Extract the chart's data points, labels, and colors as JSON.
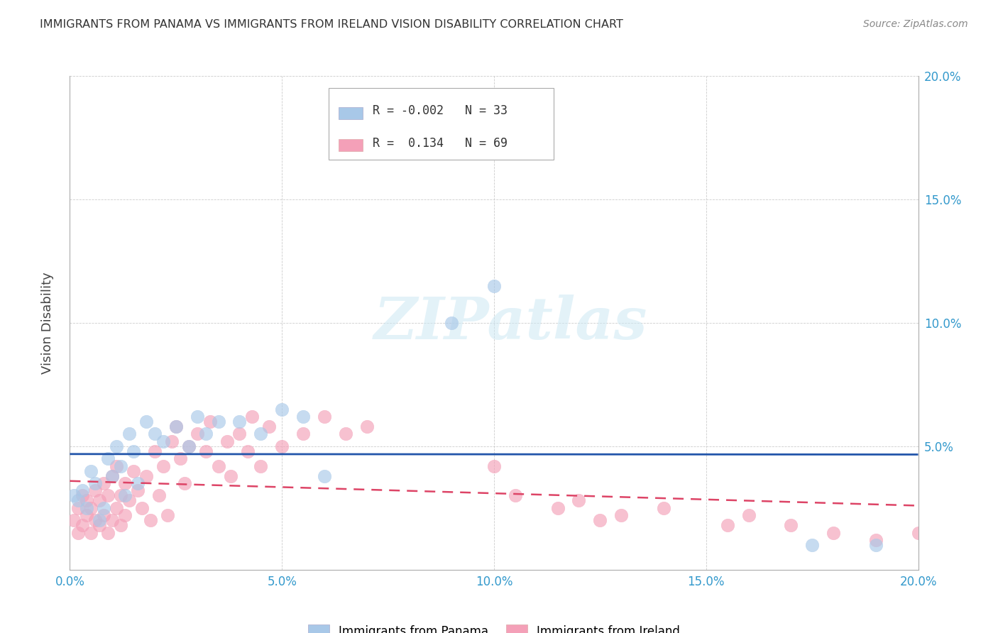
{
  "title": "IMMIGRANTS FROM PANAMA VS IMMIGRANTS FROM IRELAND VISION DISABILITY CORRELATION CHART",
  "source": "Source: ZipAtlas.com",
  "ylabel": "Vision Disability",
  "xlim": [
    0.0,
    0.2
  ],
  "ylim": [
    0.0,
    0.2
  ],
  "xticks": [
    0.0,
    0.05,
    0.1,
    0.15,
    0.2
  ],
  "yticks": [
    0.05,
    0.1,
    0.15,
    0.2
  ],
  "xtick_labels": [
    "0.0%",
    "5.0%",
    "10.0%",
    "15.0%",
    "20.0%"
  ],
  "ytick_labels_right": [
    "5.0%",
    "10.0%",
    "15.0%",
    "20.0%"
  ],
  "color_panama": "#a8c8e8",
  "color_ireland": "#f4a0b8",
  "trendline_panama_color": "#2255aa",
  "trendline_ireland_color": "#dd4466",
  "legend_r_panama": "-0.002",
  "legend_n_panama": "33",
  "legend_r_ireland": "0.134",
  "legend_n_ireland": "69",
  "panama_x": [
    0.001,
    0.002,
    0.003,
    0.004,
    0.005,
    0.006,
    0.007,
    0.008,
    0.009,
    0.01,
    0.011,
    0.012,
    0.013,
    0.014,
    0.015,
    0.016,
    0.018,
    0.02,
    0.022,
    0.025,
    0.028,
    0.03,
    0.032,
    0.035,
    0.04,
    0.045,
    0.05,
    0.055,
    0.06,
    0.09,
    0.1,
    0.175,
    0.19
  ],
  "panama_y": [
    0.03,
    0.028,
    0.032,
    0.025,
    0.04,
    0.035,
    0.02,
    0.025,
    0.045,
    0.038,
    0.05,
    0.042,
    0.03,
    0.055,
    0.048,
    0.035,
    0.06,
    0.055,
    0.052,
    0.058,
    0.05,
    0.062,
    0.055,
    0.06,
    0.06,
    0.055,
    0.065,
    0.062,
    0.038,
    0.1,
    0.115,
    0.01,
    0.01
  ],
  "ireland_x": [
    0.001,
    0.002,
    0.002,
    0.003,
    0.003,
    0.004,
    0.004,
    0.005,
    0.005,
    0.006,
    0.006,
    0.007,
    0.007,
    0.008,
    0.008,
    0.009,
    0.009,
    0.01,
    0.01,
    0.011,
    0.011,
    0.012,
    0.012,
    0.013,
    0.013,
    0.014,
    0.015,
    0.016,
    0.017,
    0.018,
    0.019,
    0.02,
    0.021,
    0.022,
    0.023,
    0.024,
    0.025,
    0.026,
    0.027,
    0.028,
    0.03,
    0.032,
    0.033,
    0.035,
    0.037,
    0.038,
    0.04,
    0.042,
    0.043,
    0.045,
    0.047,
    0.05,
    0.055,
    0.06,
    0.065,
    0.07,
    0.1,
    0.105,
    0.115,
    0.12,
    0.125,
    0.13,
    0.14,
    0.155,
    0.16,
    0.17,
    0.18,
    0.19,
    0.2
  ],
  "ireland_y": [
    0.02,
    0.015,
    0.025,
    0.018,
    0.03,
    0.022,
    0.028,
    0.015,
    0.025,
    0.02,
    0.032,
    0.018,
    0.028,
    0.022,
    0.035,
    0.015,
    0.03,
    0.02,
    0.038,
    0.025,
    0.042,
    0.018,
    0.03,
    0.022,
    0.035,
    0.028,
    0.04,
    0.032,
    0.025,
    0.038,
    0.02,
    0.048,
    0.03,
    0.042,
    0.022,
    0.052,
    0.058,
    0.045,
    0.035,
    0.05,
    0.055,
    0.048,
    0.06,
    0.042,
    0.052,
    0.038,
    0.055,
    0.048,
    0.062,
    0.042,
    0.058,
    0.05,
    0.055,
    0.062,
    0.055,
    0.058,
    0.042,
    0.03,
    0.025,
    0.028,
    0.02,
    0.022,
    0.025,
    0.018,
    0.022,
    0.018,
    0.015,
    0.012,
    0.015
  ]
}
